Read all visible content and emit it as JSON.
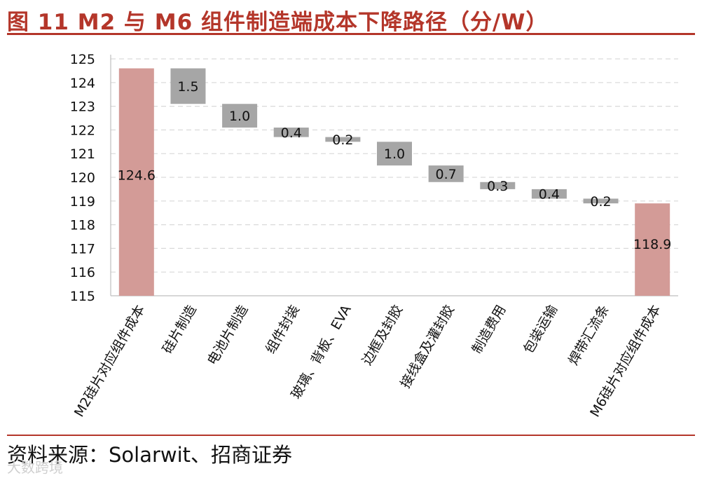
{
  "header": {
    "title": "图 11 M2 与 M6 组件制造端成本下降路径（分/W）"
  },
  "footer": {
    "source": "资料来源：Solarwit、招商证券",
    "watermark": "大数跨境"
  },
  "colors": {
    "accent": "#b4362a",
    "total_bar": "#d39b97",
    "step_bar": "#a6a6a6",
    "grid": "#d9d9d9"
  },
  "chart_data": {
    "type": "waterfall",
    "title": "M2 与 M6 组件制造端成本下降路径（分/W）",
    "ylim": [
      115,
      125
    ],
    "yticks": [
      115,
      116,
      117,
      118,
      119,
      120,
      121,
      122,
      123,
      124,
      125
    ],
    "grid": true,
    "categories": [
      "M2硅片对应组件成本",
      "硅片制造",
      "电池片制造",
      "组件封装",
      "玻璃、背板、EVA",
      "边框及封胶",
      "接线盒及灌封胶",
      "制造费用",
      "包装运输",
      "焊带汇流条",
      "M6硅片对应组件成本"
    ],
    "steps": [
      {
        "kind": "total",
        "value": 124.6,
        "label": "124.6"
      },
      {
        "kind": "decrease",
        "value": 1.5,
        "label": "1.5"
      },
      {
        "kind": "decrease",
        "value": 1.0,
        "label": "1.0"
      },
      {
        "kind": "decrease",
        "value": 0.4,
        "label": "0.4"
      },
      {
        "kind": "decrease",
        "value": 0.2,
        "label": "0.2"
      },
      {
        "kind": "decrease",
        "value": 1.0,
        "label": "1.0"
      },
      {
        "kind": "decrease",
        "value": 0.7,
        "label": "0.7"
      },
      {
        "kind": "decrease",
        "value": 0.3,
        "label": "0.3"
      },
      {
        "kind": "decrease",
        "value": 0.4,
        "label": "0.4"
      },
      {
        "kind": "decrease",
        "value": 0.2,
        "label": "0.2"
      },
      {
        "kind": "total",
        "value": 118.9,
        "label": "118.9"
      }
    ]
  }
}
